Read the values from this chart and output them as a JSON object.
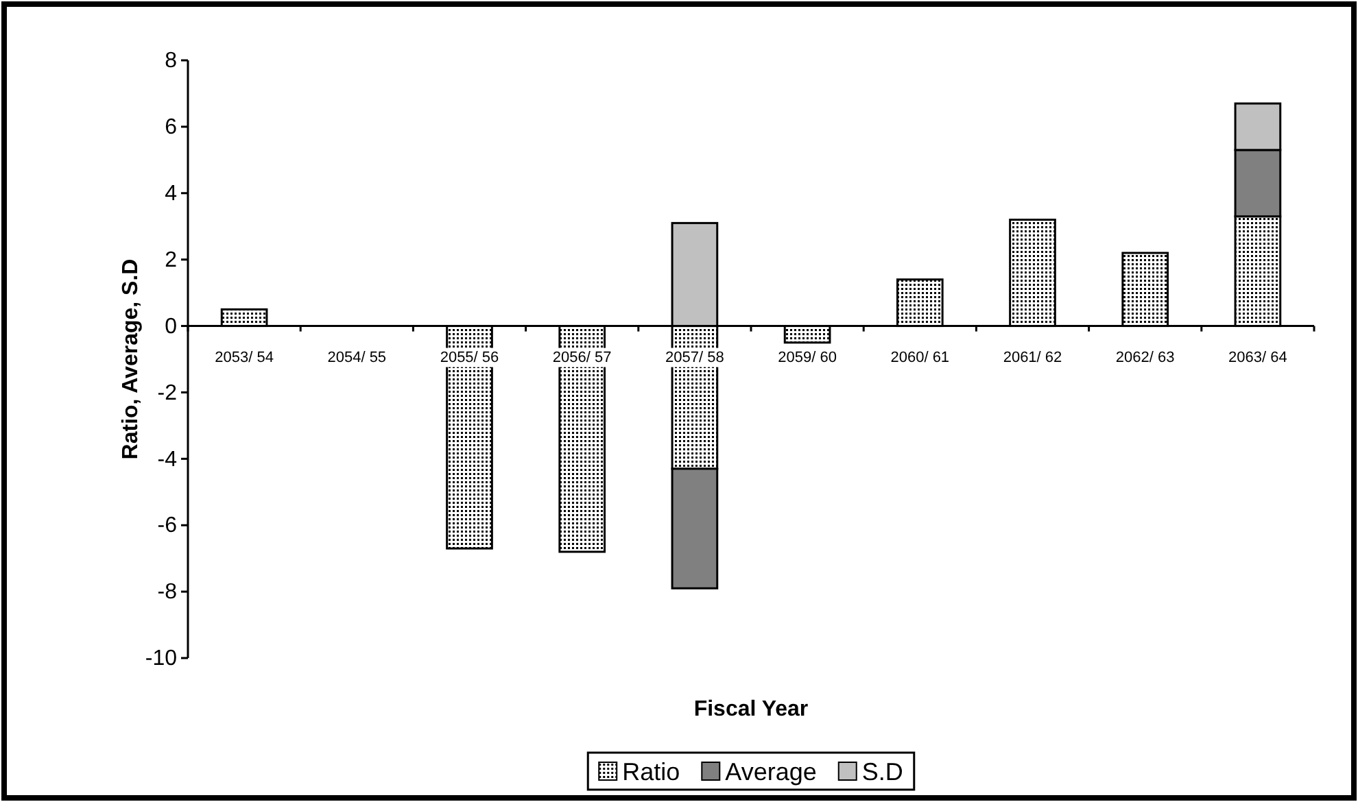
{
  "chart_data": {
    "type": "bar",
    "stacked": true,
    "xlabel": "Fiscal Year",
    "ylabel": "Ratio, Average, S.D",
    "categories": [
      "2053/ 54",
      "2054/ 55",
      "2055/ 56",
      "2056/ 57",
      "2057/ 58",
      "2059/ 60",
      "2060/ 61",
      "2061/ 62",
      "2062/ 63",
      "2063/ 64"
    ],
    "series": [
      {
        "name": "Ratio",
        "color": "#000000",
        "values": [
          0.5,
          null,
          -6.7,
          -6.8,
          -4.3,
          -0.5,
          1.4,
          3.2,
          2.2,
          3.3
        ]
      },
      {
        "name": "Average",
        "color": "#808080",
        "values": [
          null,
          null,
          null,
          null,
          -3.6,
          null,
          null,
          null,
          null,
          2.0
        ]
      },
      {
        "name": "S.D",
        "color": "#c0c0c0",
        "values": [
          null,
          null,
          null,
          null,
          3.1,
          null,
          null,
          null,
          null,
          1.4
        ]
      }
    ],
    "ylim": [
      -10,
      8
    ],
    "yticks": [
      -10,
      -8,
      -6,
      -4,
      -2,
      0,
      2,
      4,
      6,
      8
    ],
    "grid": false,
    "legend": "bottom"
  }
}
